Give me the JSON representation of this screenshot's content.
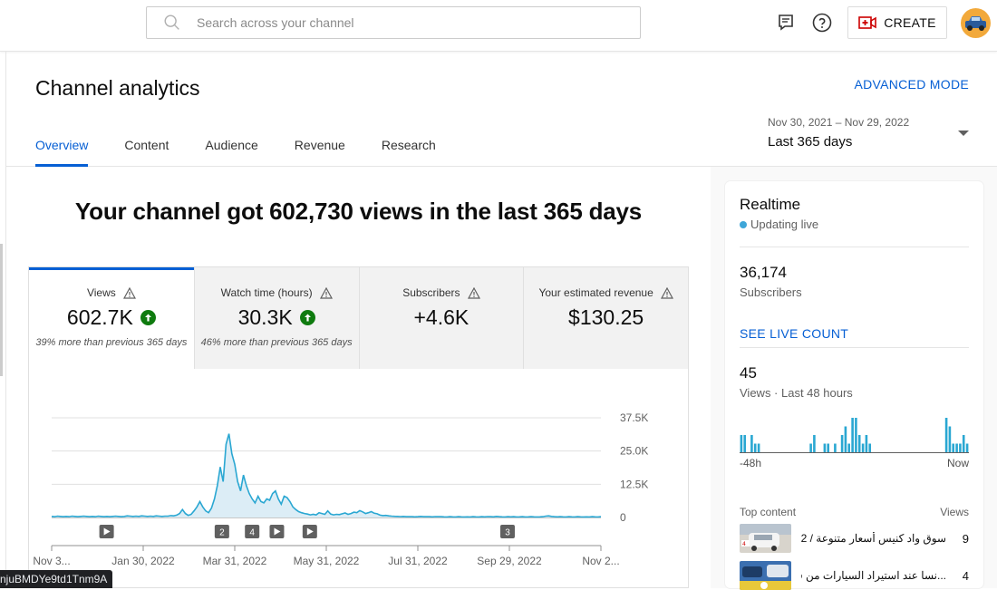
{
  "search": {
    "placeholder": "Search across your channel"
  },
  "topbar": {
    "create_label": "CREATE",
    "icons": [
      "feedback-icon",
      "help-icon",
      "create-video-icon"
    ]
  },
  "header": {
    "title": "Channel analytics",
    "advanced_mode": "ADVANCED MODE",
    "tabs": [
      {
        "label": "Overview",
        "active": true
      },
      {
        "label": "Content",
        "active": false
      },
      {
        "label": "Audience",
        "active": false
      },
      {
        "label": "Revenue",
        "active": false
      },
      {
        "label": "Research",
        "active": false
      }
    ],
    "date_range": {
      "dates": "Nov 30, 2021 – Nov 29, 2022",
      "label": "Last 365 days"
    }
  },
  "overview": {
    "headline": "Your channel got 602,730 views in the last 365 days",
    "cards": [
      {
        "label": "Views",
        "value": "602.7K",
        "up": true,
        "sub": "39% more than previous 365 days"
      },
      {
        "label": "Watch time (hours)",
        "value": "30.3K",
        "up": true,
        "sub": "46% more than previous 365 days"
      },
      {
        "label": "Subscribers",
        "value": "+4.6K",
        "up": false,
        "sub": ""
      },
      {
        "label": "Your estimated revenue",
        "value": "$130.25",
        "up": false,
        "sub": ""
      }
    ]
  },
  "chart_data": {
    "type": "area",
    "series": [
      {
        "values": [
          400,
          300,
          500,
          400,
          300,
          400,
          300,
          500,
          400,
          300,
          400,
          500,
          400,
          300,
          400,
          300,
          500,
          400,
          300,
          400,
          300,
          400,
          500,
          400,
          300,
          400,
          600,
          500,
          400,
          500,
          400,
          600,
          500,
          400,
          500,
          400,
          600,
          500,
          400,
          500,
          500,
          700,
          600,
          900,
          1500,
          3000,
          1500,
          800,
          1200,
          2500,
          4000,
          6000,
          4000,
          2500,
          1800,
          3500,
          7000,
          12000,
          19000,
          13500,
          27500,
          31500,
          24000,
          20000,
          13500,
          10000,
          16000,
          12000,
          9000,
          7000,
          5500,
          8000,
          6000,
          5500,
          7000,
          6500,
          9000,
          10000,
          7000,
          5000,
          8000,
          7500,
          6000,
          4000,
          3000,
          2200,
          1800,
          1500,
          1300,
          1000,
          1200,
          1000,
          1800,
          1500,
          1200,
          2500,
          1300,
          1000,
          1200,
          1100,
          1400,
          1700,
          1200,
          1500,
          2000,
          1800,
          2600,
          2100,
          1500,
          1800,
          2200,
          1600,
          1400,
          900,
          700,
          800,
          600,
          500,
          450,
          400,
          350,
          400,
          300,
          350,
          300,
          250,
          300,
          400,
          300,
          350,
          300,
          250,
          350,
          300,
          300,
          250,
          200,
          300,
          250,
          200,
          300,
          250,
          200,
          250,
          200,
          300,
          250,
          200,
          300,
          250,
          350,
          300,
          250,
          400,
          300,
          250,
          200,
          300,
          250,
          300,
          200,
          250,
          300,
          200,
          250,
          300,
          250,
          200,
          250,
          300,
          500,
          600,
          400,
          300,
          250,
          300,
          250,
          200,
          300,
          250,
          200,
          300,
          250,
          200,
          250,
          200,
          300,
          250,
          200,
          300
        ]
      }
    ],
    "x_tick_labels": [
      "Nov 3...",
      "Jan 30, 2022",
      "Mar 31, 2022",
      "May 31, 2022",
      "Jul 31, 2022",
      "Sep 29, 2022",
      "Nov 2..."
    ],
    "y_tick_labels": [
      "37.5K",
      "25.0K",
      "12.5K",
      "0"
    ],
    "ylim": [
      0,
      37500
    ],
    "grid": true,
    "markers": [
      {
        "label": "",
        "x": 0.1
      },
      {
        "label": "2",
        "x": 0.31
      },
      {
        "label": "4",
        "x": 0.365
      },
      {
        "label": "",
        "x": 0.41
      },
      {
        "label": "",
        "x": 0.47
      },
      {
        "label": "3",
        "x": 0.83
      }
    ]
  },
  "realtime": {
    "title": "Realtime",
    "status": "Updating live",
    "subscribers": {
      "value": "36,174",
      "label": "Subscribers",
      "link": "SEE LIVE COUNT"
    },
    "views": {
      "value": "45",
      "label": "Views · Last 48 hours"
    },
    "bars": [
      2,
      2,
      0,
      2,
      1,
      1,
      0,
      0,
      0,
      0,
      0,
      0,
      0,
      0,
      0,
      0,
      0,
      0,
      0,
      0,
      1,
      2,
      0,
      0,
      1,
      1,
      0,
      1,
      0,
      2,
      3,
      1,
      4,
      4,
      2,
      1,
      2,
      1,
      0,
      0,
      0,
      0,
      0,
      0,
      0,
      0,
      0,
      0,
      0,
      0,
      0,
      0,
      0,
      0,
      0,
      0,
      0,
      0,
      0,
      4,
      3,
      1,
      1,
      1,
      2,
      1
    ],
    "axis_left": "-48h",
    "axis_right": "Now",
    "top_content_header": "Top content",
    "top_content_views_header": "Views",
    "top_content": [
      {
        "title": "سوق واد كنيس أسعار متنوعة / 2...",
        "views": "9"
      },
      {
        "title": "...نسا عند استيراد السيارات من فرنسا",
        "views": "4"
      }
    ]
  },
  "status_url": "njuBMDYe9td1Tnm9A"
}
